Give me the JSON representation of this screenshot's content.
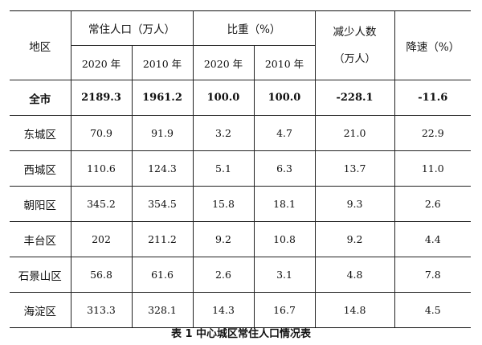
{
  "table": {
    "headers": {
      "region": "地区",
      "population_group": "常住人口（万人）",
      "share_group": "比重（%）",
      "decrease_line1": "减少人数",
      "decrease_line2": "（万人）",
      "rate": "降速（%）",
      "year_2020": "2020 年",
      "year_2010": "2010 年"
    },
    "rows": [
      {
        "region": "全市",
        "pop2020": "2189.3",
        "pop2010": "1961.2",
        "share2020": "100.0",
        "share2010": "100.0",
        "decrease": "-228.1",
        "rate": "-11.6"
      },
      {
        "region": "东城区",
        "pop2020": "70.9",
        "pop2010": "91.9",
        "share2020": "3.2",
        "share2010": "4.7",
        "decrease": "21.0",
        "rate": "22.9"
      },
      {
        "region": "西城区",
        "pop2020": "110.6",
        "pop2010": "124.3",
        "share2020": "5.1",
        "share2010": "6.3",
        "decrease": "13.7",
        "rate": "11.0"
      },
      {
        "region": "朝阳区",
        "pop2020": "345.2",
        "pop2010": "354.5",
        "share2020": "15.8",
        "share2010": "18.1",
        "decrease": "9.3",
        "rate": "2.6"
      },
      {
        "region": "丰台区",
        "pop2020": "202",
        "pop2010": "211.2",
        "share2020": "9.2",
        "share2010": "10.8",
        "decrease": "9.2",
        "rate": "4.4"
      },
      {
        "region": "石景山区",
        "pop2020": "56.8",
        "pop2010": "61.6",
        "share2020": "2.6",
        "share2010": "3.1",
        "decrease": "4.8",
        "rate": "7.8"
      },
      {
        "region": "海淀区",
        "pop2020": "313.3",
        "pop2010": "328.1",
        "share2020": "14.3",
        "share2010": "16.7",
        "decrease": "14.8",
        "rate": "4.5"
      }
    ]
  },
  "caption": "表 1 中心城区常住人口情况表"
}
